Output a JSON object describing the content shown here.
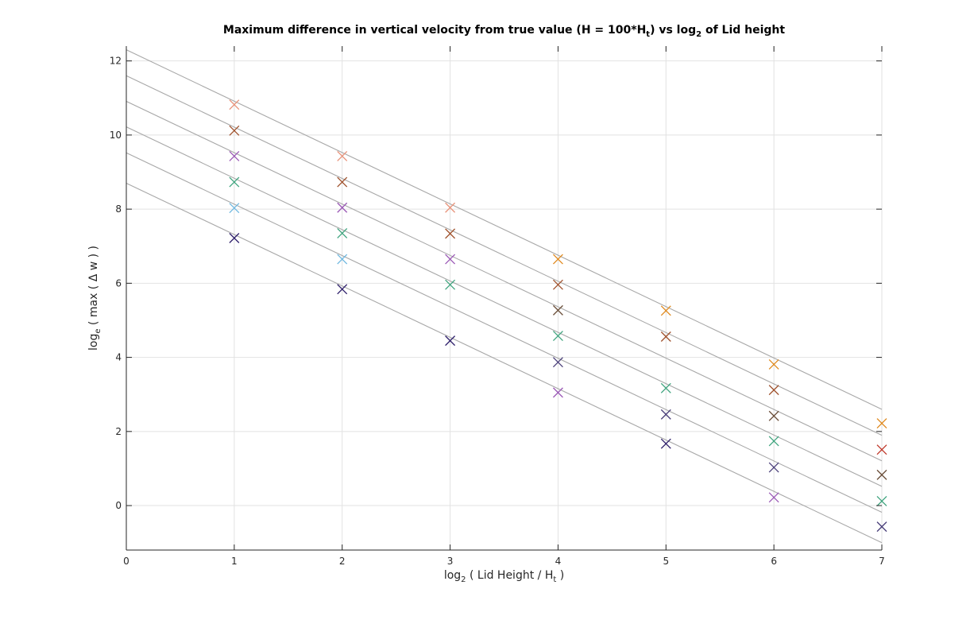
{
  "chart_data": {
    "type": "scatter",
    "title": {
      "prefix": "Maximum difference in vertical velocity from true value (H = 100*H",
      "sub1": "t",
      "middle": ") vs log",
      "sub2": "2",
      "suffix": " of Lid height"
    },
    "xlabel": {
      "prefix": "log",
      "sub1": "2",
      "middle": " ( Lid Height / H",
      "sub2": "t",
      "suffix": " )"
    },
    "ylabel": {
      "prefix": "log",
      "sub1": "e",
      "suffix": " ( max ( Δ w ) )"
    },
    "xlim": [
      0,
      7
    ],
    "ylim": [
      -1.2,
      12.4
    ],
    "xticks": [
      0,
      1,
      2,
      3,
      4,
      5,
      6,
      7
    ],
    "yticks": [
      0,
      2,
      4,
      6,
      8,
      10,
      12
    ],
    "grid": true,
    "marker": "x",
    "series": [
      {
        "color": "#2e1f6b",
        "points": [
          [
            1,
            7.22
          ],
          [
            2,
            5.84
          ],
          [
            3,
            4.45
          ],
          [
            5,
            1.67
          ]
        ]
      },
      {
        "color": "#6fb8e0",
        "points": [
          [
            1,
            8.03
          ],
          [
            2,
            6.65
          ]
        ]
      },
      {
        "color": "#3fa47e",
        "points": [
          [
            1,
            8.73
          ],
          [
            2,
            7.35
          ],
          [
            3,
            5.96
          ],
          [
            4,
            4.58
          ],
          [
            5,
            3.17
          ],
          [
            6,
            1.74
          ],
          [
            7,
            0.12
          ]
        ]
      },
      {
        "color": "#9b59b6",
        "points": [
          [
            1,
            9.43
          ],
          [
            2,
            8.04
          ],
          [
            3,
            6.65
          ],
          [
            4,
            3.05
          ],
          [
            6,
            0.22
          ]
        ]
      },
      {
        "color": "#a0522d",
        "points": [
          [
            1,
            10.12
          ],
          [
            2,
            8.73
          ],
          [
            3,
            7.34
          ],
          [
            4,
            5.96
          ],
          [
            5,
            4.56
          ],
          [
            6,
            3.12
          ]
        ]
      },
      {
        "color": "#e8937a",
        "points": [
          [
            1,
            10.82
          ],
          [
            2,
            9.43
          ],
          [
            3,
            8.04
          ]
        ]
      },
      {
        "color": "#e08a1e",
        "points": [
          [
            4,
            6.65
          ],
          [
            5,
            5.26
          ],
          [
            6,
            3.81
          ],
          [
            7,
            2.22
          ]
        ]
      },
      {
        "color": "#6b4f3a",
        "points": [
          [
            4,
            5.27
          ],
          [
            6,
            2.42
          ],
          [
            7,
            0.83
          ]
        ]
      },
      {
        "color": "#4a3f7a",
        "points": [
          [
            4,
            3.87
          ],
          [
            5,
            2.46
          ],
          [
            6,
            1.03
          ],
          [
            7,
            -0.57
          ]
        ]
      },
      {
        "color": "#c0392b",
        "points": [
          [
            7,
            1.51
          ]
        ]
      }
    ],
    "fit_lines": [
      {
        "intercept": 8.7,
        "slope": -1.386
      },
      {
        "intercept": 9.52,
        "slope": -1.386
      },
      {
        "intercept": 10.22,
        "slope": -1.386
      },
      {
        "intercept": 10.91,
        "slope": -1.386
      },
      {
        "intercept": 11.6,
        "slope": -1.386
      },
      {
        "intercept": 12.3,
        "slope": -1.386
      }
    ],
    "fit_color": "#a8a8a8",
    "grid_color": "#e2e2e2",
    "axis_color": "#262626"
  }
}
